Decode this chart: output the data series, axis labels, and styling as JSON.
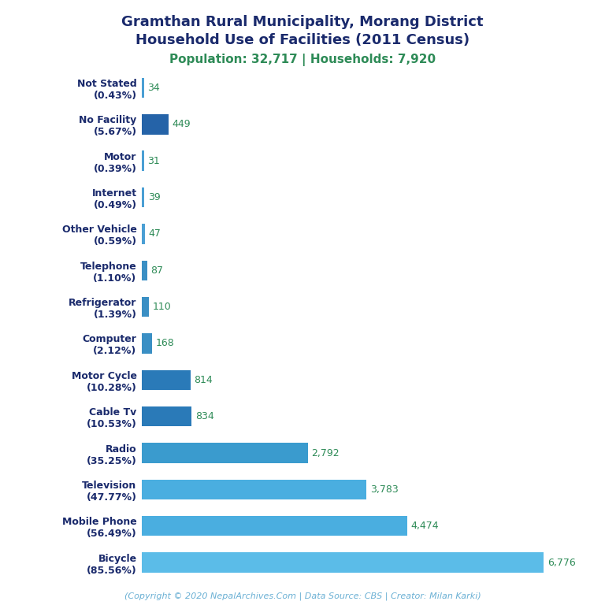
{
  "title_line1": "Gramthan Rural Municipality, Morang District",
  "title_line2": "Household Use of Facilities (2011 Census)",
  "subtitle": "Population: 32,717 | Households: 7,920",
  "footer": "(Copyright © 2020 NepalArchives.Com | Data Source: CBS | Creator: Milan Karki)",
  "categories": [
    "Not Stated\n(0.43%)",
    "No Facility\n(5.67%)",
    "Motor\n(0.39%)",
    "Internet\n(0.49%)",
    "Other Vehicle\n(0.59%)",
    "Telephone\n(1.10%)",
    "Refrigerator\n(1.39%)",
    "Computer\n(2.12%)",
    "Motor Cycle\n(10.28%)",
    "Cable Tv\n(10.53%)",
    "Radio\n(35.25%)",
    "Television\n(47.77%)",
    "Mobile Phone\n(56.49%)",
    "Bicycle\n(85.56%)"
  ],
  "values": [
    34,
    449,
    31,
    39,
    47,
    87,
    110,
    168,
    814,
    834,
    2792,
    3783,
    4474,
    6776
  ],
  "bar_colors": [
    "#4a9fd4",
    "#2563a8",
    "#4a9fd4",
    "#4a9fd4",
    "#4a9fd4",
    "#3a8fc4",
    "#3a8fc4",
    "#3a8fc4",
    "#2a7ab8",
    "#2a7ab8",
    "#3a9bce",
    "#4aaee0",
    "#4aaee0",
    "#5bbce8"
  ],
  "value_color": "#2e8b57",
  "title_color": "#1a2a6c",
  "subtitle_color": "#2e8b57",
  "footer_color": "#6ab0d4",
  "background_color": "#ffffff",
  "xlim": [
    0,
    7500
  ],
  "title_fontsize": 13,
  "subtitle_fontsize": 11,
  "label_fontsize": 9,
  "value_fontsize": 9,
  "footer_fontsize": 8
}
